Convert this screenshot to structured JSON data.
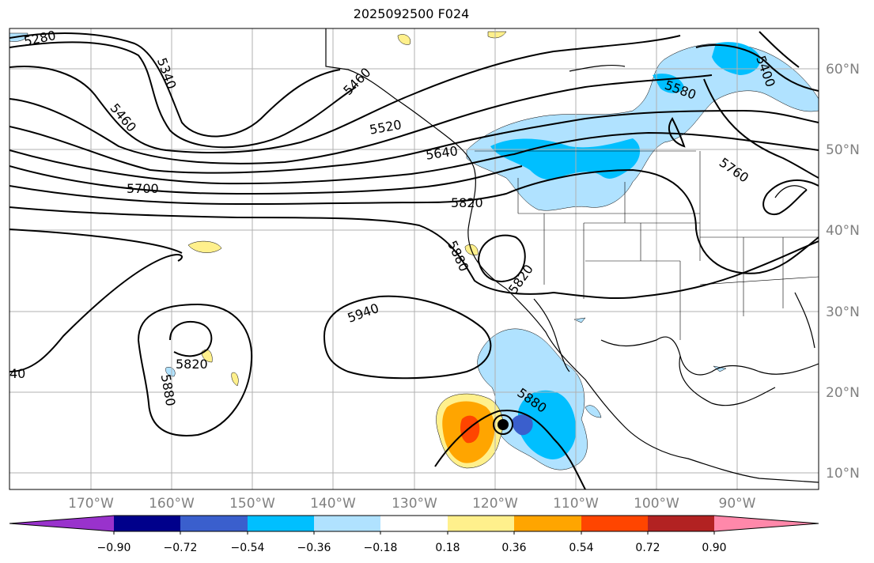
{
  "title": "2025092500 F024",
  "map": {
    "lon_labels": [
      "170°W",
      "160°W",
      "150°W",
      "140°W",
      "130°W",
      "120°W",
      "110°W",
      "100°W",
      "90°W"
    ],
    "lat_labels": [
      "60°N",
      "50°N",
      "40°N",
      "30°N",
      "20°N",
      "10°N"
    ],
    "contour_labels": [
      "5280",
      "5340",
      "5460",
      "5520",
      "5460",
      "5640",
      "5700",
      "5820",
      "5880",
      "5940",
      "5820",
      "5880",
      "5820",
      "5880",
      "5580",
      "5400",
      "5760",
      "40"
    ]
  },
  "colorbar": {
    "tick_labels": [
      "−0.90",
      "−0.72",
      "−0.54",
      "−0.36",
      "−0.18",
      "0.18",
      "0.36",
      "0.54",
      "0.72",
      "0.90"
    ],
    "colors": [
      "#9932cc",
      "#00008b",
      "#3a5fcd",
      "#00bfff",
      "#b0e2ff",
      "#ffffff",
      "#fff08c",
      "#ffa500",
      "#ff4500",
      "#b22222",
      "#ff88aa"
    ]
  }
}
